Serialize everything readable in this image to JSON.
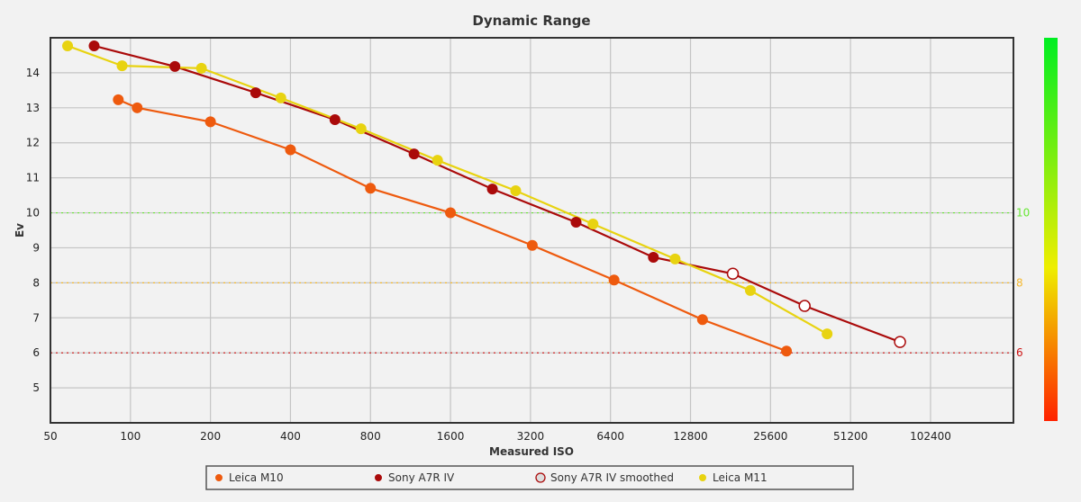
{
  "chart_data": {
    "type": "line",
    "title": "Dynamic Range",
    "xlabel": "Measured ISO",
    "ylabel": "Ev",
    "x_scale": "log2",
    "xlim": [
      50,
      210000
    ],
    "ylim": [
      4,
      15
    ],
    "x_ticks": [
      50,
      100,
      200,
      400,
      800,
      1600,
      3200,
      6400,
      12800,
      25600,
      51200,
      102400
    ],
    "y_ticks": [
      5,
      6,
      7,
      8,
      9,
      10,
      11,
      12,
      13,
      14
    ],
    "grid": true,
    "legend_placement": "bottom",
    "reference_lines": [
      {
        "value": 10,
        "label": "10",
        "color": "#66e633"
      },
      {
        "value": 8,
        "label": "8",
        "color": "#f5b82e"
      },
      {
        "value": 6,
        "label": "6",
        "color": "#cc1111"
      }
    ],
    "color_scale": {
      "top": "#00ee22",
      "middle": "#eeee00",
      "bottom": "#ff2200"
    },
    "series": [
      {
        "name": "Leica M10",
        "color": "#ee5a0e",
        "marker": "filled",
        "points": [
          [
            90,
            13.23
          ],
          [
            106,
            13.0
          ],
          [
            200,
            12.6
          ],
          [
            400,
            11.8
          ],
          [
            800,
            10.7
          ],
          [
            1600,
            10.0
          ],
          [
            3250,
            9.07
          ],
          [
            6600,
            8.08
          ],
          [
            14200,
            6.95
          ],
          [
            29400,
            6.05
          ]
        ]
      },
      {
        "name": "Sony A7R IV",
        "color": "#aa0a0a",
        "marker": "filled",
        "points": [
          [
            73,
            14.77
          ],
          [
            147,
            14.18
          ],
          [
            296,
            13.43
          ],
          [
            588,
            12.66
          ],
          [
            1167,
            11.68
          ],
          [
            2300,
            10.68
          ],
          [
            4750,
            9.73
          ],
          [
            9280,
            8.73
          ]
        ]
      },
      {
        "name": "Sony A7R IV smoothed",
        "color": "#aa0a0a",
        "marker": "hollow",
        "points": [
          [
            18470,
            8.26
          ],
          [
            34400,
            7.34
          ],
          [
            78600,
            6.31
          ]
        ]
      },
      {
        "name": "Leica M11",
        "color": "#e8d310",
        "marker": "filled",
        "points": [
          [
            58,
            14.77
          ],
          [
            93,
            14.2
          ],
          [
            185,
            14.13
          ],
          [
            368,
            13.28
          ],
          [
            737,
            12.4
          ],
          [
            1430,
            11.5
          ],
          [
            2815,
            10.63
          ],
          [
            5500,
            9.68
          ],
          [
            11200,
            8.68
          ],
          [
            21500,
            7.78
          ],
          [
            41800,
            6.54
          ]
        ]
      }
    ]
  }
}
